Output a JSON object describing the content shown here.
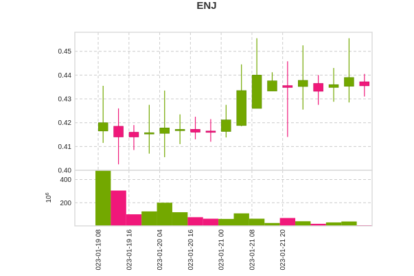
{
  "chart_data": {
    "type": "candlestick",
    "title": "ENJ",
    "colors": {
      "up": "#73a800",
      "down": "#f0187a",
      "up_edge": "#5a8a00",
      "down_edge": "#c80060"
    },
    "x_ticks": [
      "023-01-19 08",
      "023-01-19 16",
      "023-01-20 04",
      "023-01-20 16",
      "023-01-21 00",
      "023-01-21 08",
      "023-01-21 20"
    ],
    "price_axis": {
      "ylim": [
        0.4,
        0.458
      ],
      "ticks": [
        0.4,
        0.41,
        0.42,
        0.43,
        0.44,
        0.45
      ],
      "tick_labels": [
        "0.40",
        "0.41",
        "0.42",
        "0.43",
        "0.44",
        "0.45"
      ]
    },
    "volume_axis": {
      "ylim": [
        0,
        480
      ],
      "ticks": [
        200,
        400
      ],
      "tick_labels": [
        "200",
        "400"
      ],
      "ylabel": "10^6",
      "ylabel_base": "10",
      "ylabel_exp": "6"
    },
    "candles": [
      {
        "open": 0.4165,
        "high": 0.4355,
        "low": 0.4115,
        "close": 0.42,
        "volume": 480
      },
      {
        "open": 0.4185,
        "high": 0.426,
        "low": 0.4025,
        "close": 0.414,
        "volume": 305
      },
      {
        "open": 0.416,
        "high": 0.419,
        "low": 0.4085,
        "close": 0.414,
        "volume": 100
      },
      {
        "open": 0.4153,
        "high": 0.4275,
        "low": 0.407,
        "close": 0.4158,
        "volume": 125
      },
      {
        "open": 0.4155,
        "high": 0.4335,
        "low": 0.4055,
        "close": 0.4178,
        "volume": 200
      },
      {
        "open": 0.4168,
        "high": 0.4235,
        "low": 0.411,
        "close": 0.4172,
        "volume": 118
      },
      {
        "open": 0.4172,
        "high": 0.4225,
        "low": 0.413,
        "close": 0.416,
        "volume": 75
      },
      {
        "open": 0.4165,
        "high": 0.4215,
        "low": 0.412,
        "close": 0.416,
        "volume": 62
      },
      {
        "open": 0.4163,
        "high": 0.4275,
        "low": 0.4138,
        "close": 0.4212,
        "volume": 60
      },
      {
        "open": 0.4188,
        "high": 0.4445,
        "low": 0.4185,
        "close": 0.4335,
        "volume": 108
      },
      {
        "open": 0.426,
        "high": 0.4555,
        "low": 0.426,
        "close": 0.44,
        "volume": 62
      },
      {
        "open": 0.4333,
        "high": 0.4412,
        "low": 0.4333,
        "close": 0.4376,
        "volume": 25
      },
      {
        "open": 0.4356,
        "high": 0.4458,
        "low": 0.414,
        "close": 0.4348,
        "volume": 68
      },
      {
        "open": 0.4352,
        "high": 0.4525,
        "low": 0.4255,
        "close": 0.4378,
        "volume": 40
      },
      {
        "open": 0.4365,
        "high": 0.44,
        "low": 0.4275,
        "close": 0.4332,
        "volume": 18
      },
      {
        "open": 0.4348,
        "high": 0.443,
        "low": 0.4288,
        "close": 0.436,
        "volume": 30
      },
      {
        "open": 0.4353,
        "high": 0.4555,
        "low": 0.4285,
        "close": 0.439,
        "volume": 38
      },
      {
        "open": 0.4372,
        "high": 0.4405,
        "low": 0.431,
        "close": 0.4355,
        "volume": 6
      }
    ]
  }
}
